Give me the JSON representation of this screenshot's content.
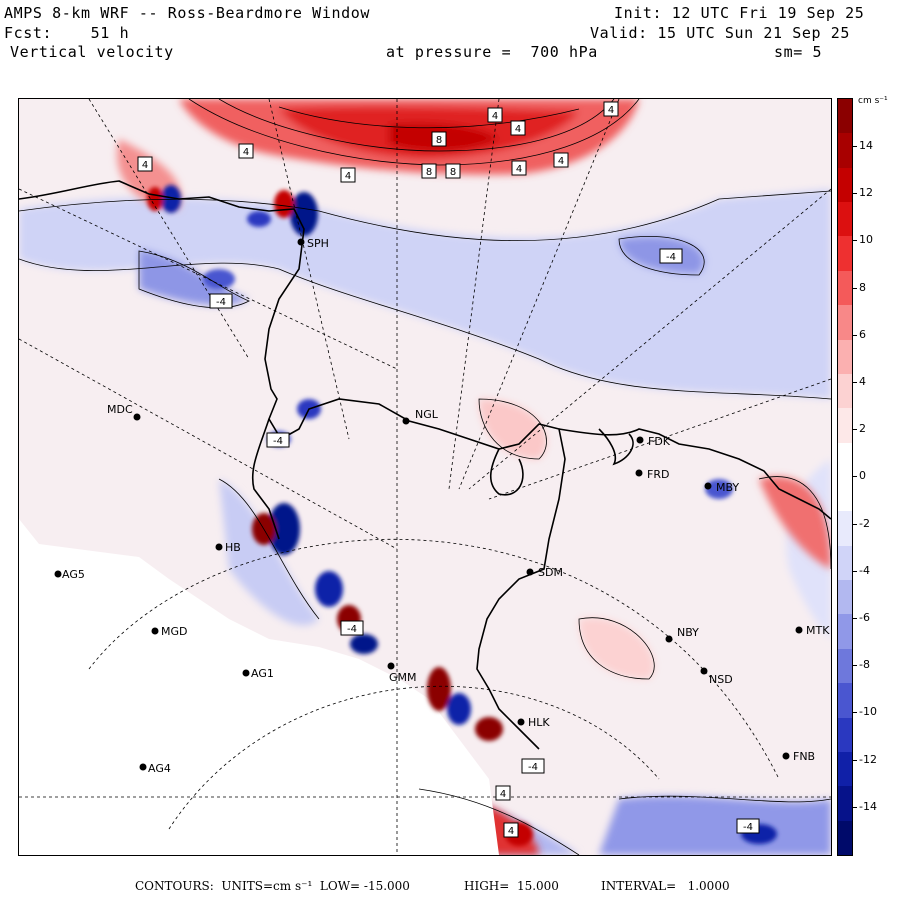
{
  "header": {
    "title": "AMPS 8-km WRF -- Ross-Beardmore Window",
    "fcst": "Fcst:    51 h",
    "variable": "Vertical velocity",
    "init": "Init: 12 UTC Fri 19 Sep 25",
    "valid": "Valid: 15 UTC Sun 21 Sep 25",
    "pressure_label": "at pressure =  700 hPa",
    "smoothing": "sm= 5"
  },
  "colorbar": {
    "unit": "cm s⁻¹",
    "ticks": [
      "14",
      "12",
      "10",
      "8",
      "6",
      "4",
      "2",
      "0",
      "-2",
      "-4",
      "-6",
      "-8",
      "-10",
      "-12",
      "-14"
    ],
    "colors": [
      "#8b0000",
      "#a80000",
      "#c40000",
      "#dc1010",
      "#ee3030",
      "#f45a5a",
      "#f88888",
      "#fbb0b0",
      "#fcd2d2",
      "#fde8e8",
      "#ffffff",
      "#ffffff",
      "#e8eafc",
      "#d0d4f8",
      "#b2b8f0",
      "#9098e8",
      "#6e78dc",
      "#4a56d0",
      "#2a38c0",
      "#1020a8",
      "#06128a",
      "#000a6a"
    ]
  },
  "stations": [
    {
      "id": "SPH",
      "label": "SPH"
    },
    {
      "id": "NGL",
      "label": "NGL"
    },
    {
      "id": "MDC",
      "label": "MDC"
    },
    {
      "id": "FDK",
      "label": "FDK"
    },
    {
      "id": "FRD",
      "label": "FRD"
    },
    {
      "id": "MBY",
      "label": "MBY"
    },
    {
      "id": "AG5",
      "label": "AG5"
    },
    {
      "id": "MGD",
      "label": "MGD"
    },
    {
      "id": "AG1",
      "label": "AG1"
    },
    {
      "id": "AG4",
      "label": "AG4"
    },
    {
      "id": "SDM",
      "label": "SDM"
    },
    {
      "id": "NBY",
      "label": "NBY"
    },
    {
      "id": "MTK",
      "label": "MTK"
    },
    {
      "id": "NSD",
      "label": "NSD"
    },
    {
      "id": "HLK",
      "label": "HLK"
    },
    {
      "id": "FNB",
      "label": "FNB"
    },
    {
      "id": "GMM",
      "label": "GMM"
    },
    {
      "id": "HB",
      "label": "HB"
    }
  ],
  "contour_labels": [
    "4",
    "4",
    "4",
    "4",
    "4",
    "8",
    "8",
    "8",
    "4",
    "4",
    "4",
    "-4",
    "-4",
    "-4",
    "-4",
    "-4",
    "-4",
    "4",
    "4"
  ],
  "footer": {
    "contours": "CONTOURS:  UNITS=cm s⁻¹  LOW= -15.000",
    "high": "HIGH=  15.000",
    "interval": "INTERVAL=   1.0000"
  }
}
